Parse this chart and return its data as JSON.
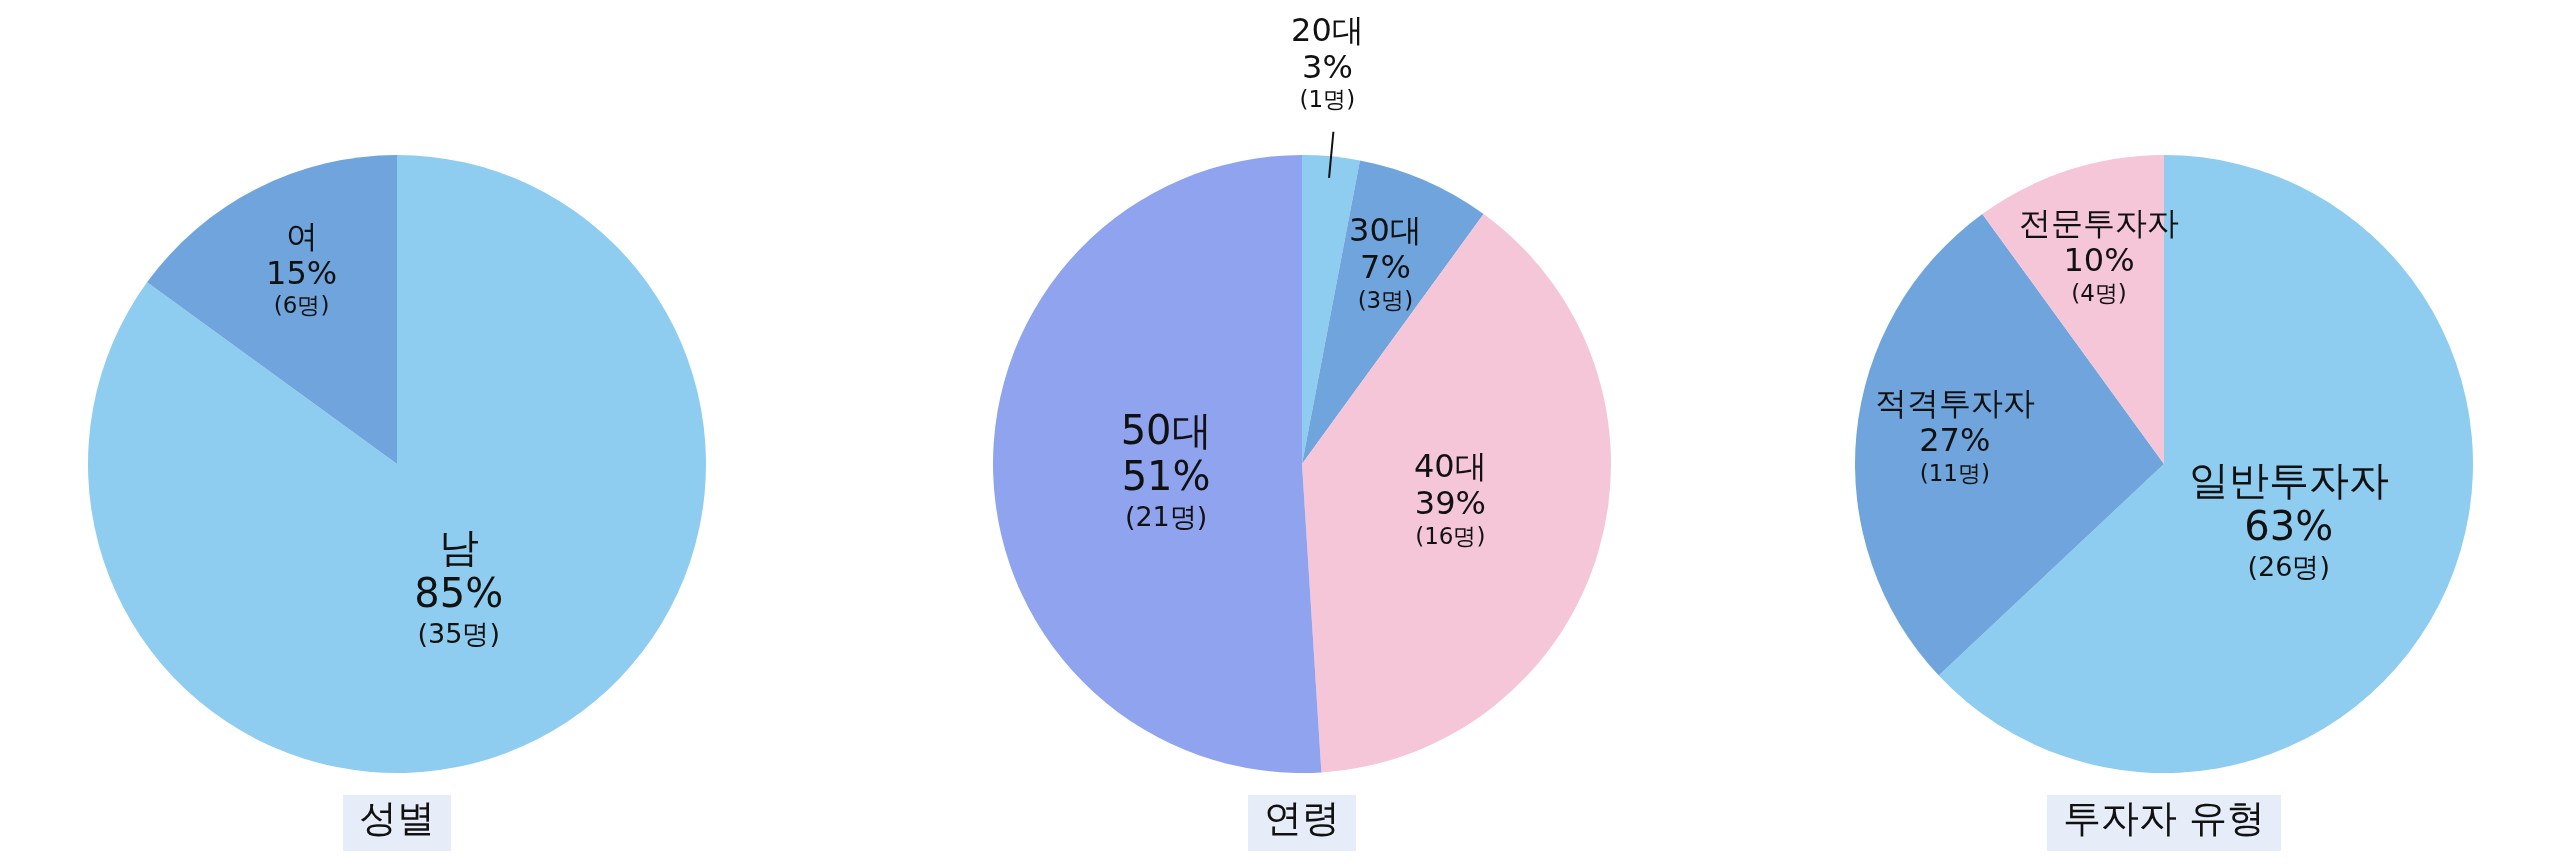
{
  "chart_data": [
    {
      "type": "pie",
      "title": "성별",
      "categories": [
        "남",
        "여"
      ],
      "values": [
        85,
        15
      ],
      "colors": [
        "#8fcdf0",
        "#6fa5dc"
      ],
      "value_labels": [
        "85%",
        "15%"
      ],
      "annotations": [
        {
          "text": "(35명)",
          "x": "남"
        },
        {
          "text": "(6명)",
          "x": "여"
        }
      ]
    },
    {
      "type": "pie",
      "title": "연령",
      "categories": [
        "20대",
        "30대",
        "40대",
        "50대"
      ],
      "values": [
        3,
        7,
        39,
        51
      ],
      "colors": [
        "#8fcdf0",
        "#6fa5dc",
        "#f5c5d8",
        "#90a3ee"
      ],
      "value_labels": [
        "3%",
        "7%",
        "39%",
        "51%"
      ],
      "annotations": [
        {
          "text": "(1명)",
          "x": "20대"
        },
        {
          "text": "(3명)",
          "x": "30대"
        },
        {
          "text": "(16명)",
          "x": "40대"
        },
        {
          "text": "(21명)",
          "x": "50대"
        }
      ]
    },
    {
      "type": "pie",
      "title": "투자자 유형",
      "categories": [
        "일반투자자",
        "적격투자자",
        "전문투자자"
      ],
      "values": [
        63,
        27,
        10
      ],
      "colors": [
        "#8fcdf0",
        "#6fa5dc",
        "#f5c5d8"
      ],
      "value_labels": [
        "63%",
        "27%",
        "10%"
      ],
      "annotations": [
        {
          "text": "(26명)",
          "x": "일반투자자"
        },
        {
          "text": "(11명)",
          "x": "적격투자자"
        },
        {
          "text": "(4명)",
          "x": "전문투자자"
        }
      ]
    }
  ]
}
